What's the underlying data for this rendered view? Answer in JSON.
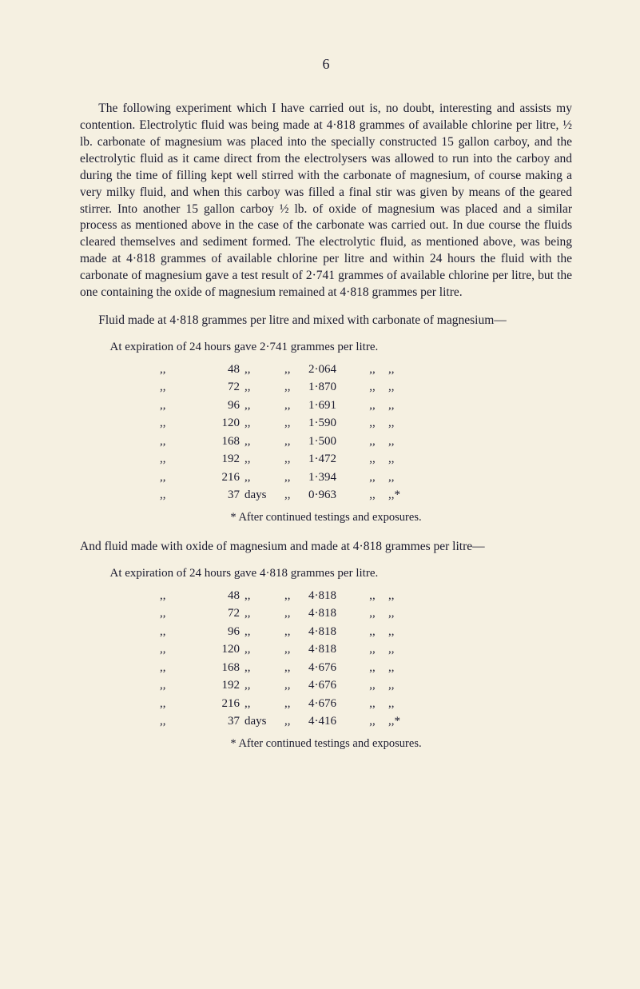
{
  "page_number": "6",
  "paragraph1": "The following experiment which I have carried out is, no doubt, interesting and assists my contention. Electrolytic fluid was being made at 4·818 grammes of available chlorine per litre, ½ lb. carbonate of magnesium was placed into the specially constructed 15 gallon carboy, and the electrolytic fluid as it came direct from the electrolysers was allowed to run into the carboy and during the time of filling kept well stirred with the carbonate of magnesium, of course making a very milky fluid, and when this carboy was filled a final stir was given by means of the geared stirrer. Into another 15 gallon carboy ½ lb. of oxide of magnesium was placed and a similar process as mentioned above in the case of the carbonate was carried out. In due course the fluids cleared themselves and sediment formed. The electrolytic fluid, as mentioned above, was being made at 4·818 grammes of available chlorine per litre and within 24 hours the fluid with the carbonate of magnesium gave a test result of 2·741 grammes of available chlorine per litre, but the one containing the oxide of magnesium remained at 4·818 grammes per litre.",
  "paragraph2": "Fluid made at 4·818 grammes per litre and mixed with carbonate of magnesium—",
  "table1": {
    "heading": "At expiration of 24 hours gave 2·741 grammes per litre.",
    "rows": [
      {
        "ditto1": ",,",
        "time": "48",
        "unit": ",,",
        "ditto2": ",,",
        "value": "2·064",
        "ditto3": ",,",
        "ditto4": ",,"
      },
      {
        "ditto1": ",,",
        "time": "72",
        "unit": ",,",
        "ditto2": ",,",
        "value": "1·870",
        "ditto3": ",,",
        "ditto4": ",,"
      },
      {
        "ditto1": ",,",
        "time": "96",
        "unit": ",,",
        "ditto2": ",,",
        "value": "1·691",
        "ditto3": ",,",
        "ditto4": ",,"
      },
      {
        "ditto1": ",,",
        "time": "120",
        "unit": ",,",
        "ditto2": ",,",
        "value": "1·590",
        "ditto3": ",,",
        "ditto4": ",,"
      },
      {
        "ditto1": ",,",
        "time": "168",
        "unit": ",,",
        "ditto2": ",,",
        "value": "1·500",
        "ditto3": ",,",
        "ditto4": ",,"
      },
      {
        "ditto1": ",,",
        "time": "192",
        "unit": ",,",
        "ditto2": ",,",
        "value": "1·472",
        "ditto3": ",,",
        "ditto4": ",,"
      },
      {
        "ditto1": ",,",
        "time": "216",
        "unit": ",,",
        "ditto2": ",,",
        "value": "1·394",
        "ditto3": ",,",
        "ditto4": ",,"
      },
      {
        "ditto1": ",,",
        "time": "37",
        "unit": "days",
        "ditto2": ",,",
        "value": "0·963",
        "ditto3": ",,",
        "ditto4": ",,*"
      }
    ],
    "footnote": "* After continued testings and exposures."
  },
  "paragraph3": "And fluid made with oxide of magnesium and made at 4·818 grammes per litre—",
  "table2": {
    "heading": "At expiration of 24 hours gave 4·818 grammes per litre.",
    "rows": [
      {
        "ditto1": ",,",
        "time": "48",
        "unit": ",,",
        "ditto2": ",,",
        "value": "4·818",
        "ditto3": ",,",
        "ditto4": ",,"
      },
      {
        "ditto1": ",,",
        "time": "72",
        "unit": ",,",
        "ditto2": ",,",
        "value": "4·818",
        "ditto3": ",,",
        "ditto4": ",,"
      },
      {
        "ditto1": ",,",
        "time": "96",
        "unit": ",,",
        "ditto2": ",,",
        "value": "4·818",
        "ditto3": ",,",
        "ditto4": ",,"
      },
      {
        "ditto1": ",,",
        "time": "120",
        "unit": ",,",
        "ditto2": ",,",
        "value": "4·818",
        "ditto3": ",,",
        "ditto4": ",,"
      },
      {
        "ditto1": ",,",
        "time": "168",
        "unit": ",,",
        "ditto2": ",,",
        "value": "4·676",
        "ditto3": ",,",
        "ditto4": ",,"
      },
      {
        "ditto1": ",,",
        "time": "192",
        "unit": ",,",
        "ditto2": ",,",
        "value": "4·676",
        "ditto3": ",,",
        "ditto4": ",,"
      },
      {
        "ditto1": ",,",
        "time": "216",
        "unit": ",,",
        "ditto2": ",,",
        "value": "4·676",
        "ditto3": ",,",
        "ditto4": ",,"
      },
      {
        "ditto1": ",,",
        "time": "37",
        "unit": "days",
        "ditto2": ",,",
        "value": "4·416",
        "ditto3": ",,",
        "ditto4": ",,*"
      }
    ],
    "footnote": "* After continued testings and exposures."
  }
}
